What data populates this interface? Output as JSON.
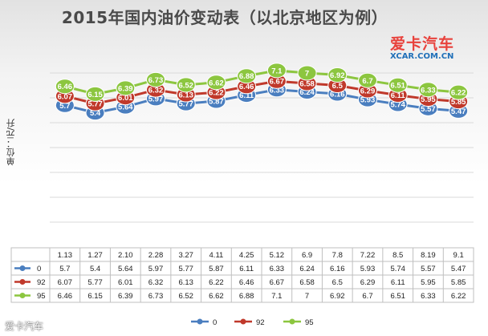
{
  "title": "2015年国内油价变动表（以北京地区为例）",
  "logo": {
    "cn": "爱卡汽车",
    "en": "XCAR.COM.CN"
  },
  "watermark": "爱卡汽车",
  "chart_data": {
    "type": "line",
    "title": "2015年国内油价变动表（以北京地区为例）",
    "ylabel": "单位：元/升",
    "xlabel": "",
    "categories": [
      "1.13",
      "1.27",
      "2.10",
      "2.28",
      "3.27",
      "4.11",
      "4.25",
      "5.12",
      "6.9",
      "7.8",
      "7.22",
      "8.5",
      "8.19",
      "9.1"
    ],
    "series": [
      {
        "name": "0",
        "color": "#4a7ebf",
        "values": [
          5.7,
          5.4,
          5.64,
          5.97,
          5.77,
          5.87,
          6.11,
          6.33,
          6.24,
          6.16,
          5.93,
          5.74,
          5.57,
          5.47
        ]
      },
      {
        "name": "92",
        "color": "#c0392b",
        "values": [
          6.07,
          5.77,
          6.01,
          6.32,
          6.13,
          6.22,
          6.46,
          6.67,
          6.58,
          6.5,
          6.29,
          6.11,
          5.95,
          5.85
        ]
      },
      {
        "name": "95",
        "color": "#8cc63f",
        "values": [
          6.46,
          6.15,
          6.39,
          6.73,
          6.52,
          6.62,
          6.88,
          7.1,
          7,
          6.92,
          6.7,
          6.51,
          6.33,
          6.22
        ]
      }
    ],
    "grid": true,
    "legend": "bottom",
    "data_table": true
  }
}
